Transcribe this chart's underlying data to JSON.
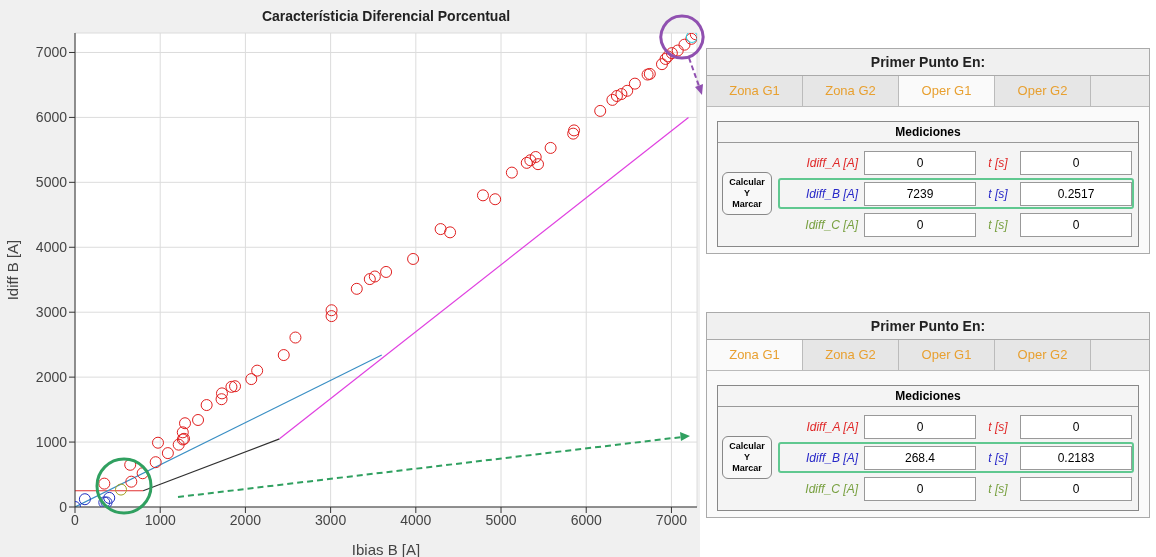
{
  "chart_data": [
    {
      "type": "scatter",
      "title": "Característicia Diferencial Porcentual",
      "xlabel": "Ibias B [A]",
      "ylabel": "Idiff B [A]",
      "xlim": [
        0,
        7300
      ],
      "ylim": [
        0,
        7300
      ],
      "xticks": [
        0,
        1000,
        2000,
        3000,
        4000,
        5000,
        6000,
        7000
      ],
      "yticks": [
        0,
        1000,
        2000,
        3000,
        4000,
        5000,
        6000,
        7000
      ],
      "grid": true,
      "marker": "circle",
      "line_style": "solid",
      "series": [
        {
          "type": "line",
          "marker": "none",
          "color": "#e03030",
          "x": [
            0,
            800
          ],
          "values": [
            250,
            250
          ]
        },
        {
          "type": "line",
          "marker": "none",
          "color": "#3a8fc4",
          "x": [
            0,
            3600
          ],
          "values": [
            0,
            2340
          ]
        },
        {
          "type": "line",
          "marker": "none",
          "color": "#303030",
          "x": [
            800,
            2400
          ],
          "values": [
            250,
            1050
          ]
        },
        {
          "type": "line",
          "marker": "none",
          "color": "#e040e0",
          "x": [
            2400,
            7200
          ],
          "values": [
            1050,
            6000
          ]
        },
        {
          "type": "scatter",
          "color": "#e02020",
          "x": [
            344,
            648,
            661,
            794,
            947,
            974,
            1090,
            1217,
            1265,
            1280,
            1265,
            1291,
            1444,
            1545,
            1720,
            1725,
            1836,
            1878,
            2069,
            2138,
            2450,
            2587,
            3011,
            3011,
            3307,
            3460,
            3519,
            3651,
            3968,
            4291,
            4402,
            4788,
            4931,
            5127,
            5302,
            5344,
            5407,
            5434,
            5582,
            5847,
            5857,
            6164,
            6307,
            6360,
            6413,
            6481,
            6571,
            6720,
            6746,
            6889,
            6931,
            6958,
            7005,
            7074,
            7153,
            7233,
            7286
          ],
          "values": [
            360,
            650,
            390,
            520,
            690,
            990,
            830,
            960,
            1040,
            1050,
            1150,
            1290,
            1340,
            1570,
            1660,
            1750,
            1850,
            1860,
            1970,
            2100,
            2340,
            2610,
            2940,
            3030,
            3360,
            3510,
            3550,
            3620,
            3820,
            4280,
            4230,
            4800,
            4740,
            5150,
            5300,
            5340,
            5390,
            5280,
            5530,
            5750,
            5800,
            6100,
            6270,
            6330,
            6360,
            6410,
            6520,
            6660,
            6670,
            6820,
            6900,
            6940,
            6990,
            7030,
            7120,
            7210,
            7280
          ]
        },
        {
          "type": "scatter",
          "color": "#2030c0",
          "x": [
            0,
            116,
            344,
            370,
            402
          ],
          "values": [
            0,
            120,
            70,
            70,
            140
          ]
        },
        {
          "type": "scatter",
          "color": "#a0a020",
          "x": [
            540
          ],
          "values": [
            268.4
          ]
        },
        {
          "type": "scatter",
          "color": "#20d0e0",
          "x": [
            7240
          ],
          "values": [
            7239
          ]
        }
      ]
    },
    {
      "type": "other",
      "title": "Primer Punto En:",
      "annotations": [
        "Zona G1",
        "Zona G2",
        "Oper G1",
        "Oper G2",
        "Mediciones",
        "Calcular Y Marcar",
        "Idiff_A [A]",
        "0",
        "t [s]",
        "0",
        "Idiff_B [A]",
        "7239",
        "t [s]",
        "0.2517",
        "Idiff_C [A]",
        "0",
        "t [s]",
        "0"
      ]
    },
    {
      "type": "other",
      "title": "Primer Punto En:",
      "annotations": [
        "Zona G1",
        "Zona G2",
        "Oper G1",
        "Oper G2",
        "Mediciones",
        "Calcular Y Marcar",
        "Idiff_A [A]",
        "0",
        "t [s]",
        "0",
        "Idiff_B [A]",
        "268.4",
        "t [s]",
        "0.2183",
        "Idiff_C [A]",
        "0",
        "t [s]",
        "0"
      ]
    }
  ]
}
